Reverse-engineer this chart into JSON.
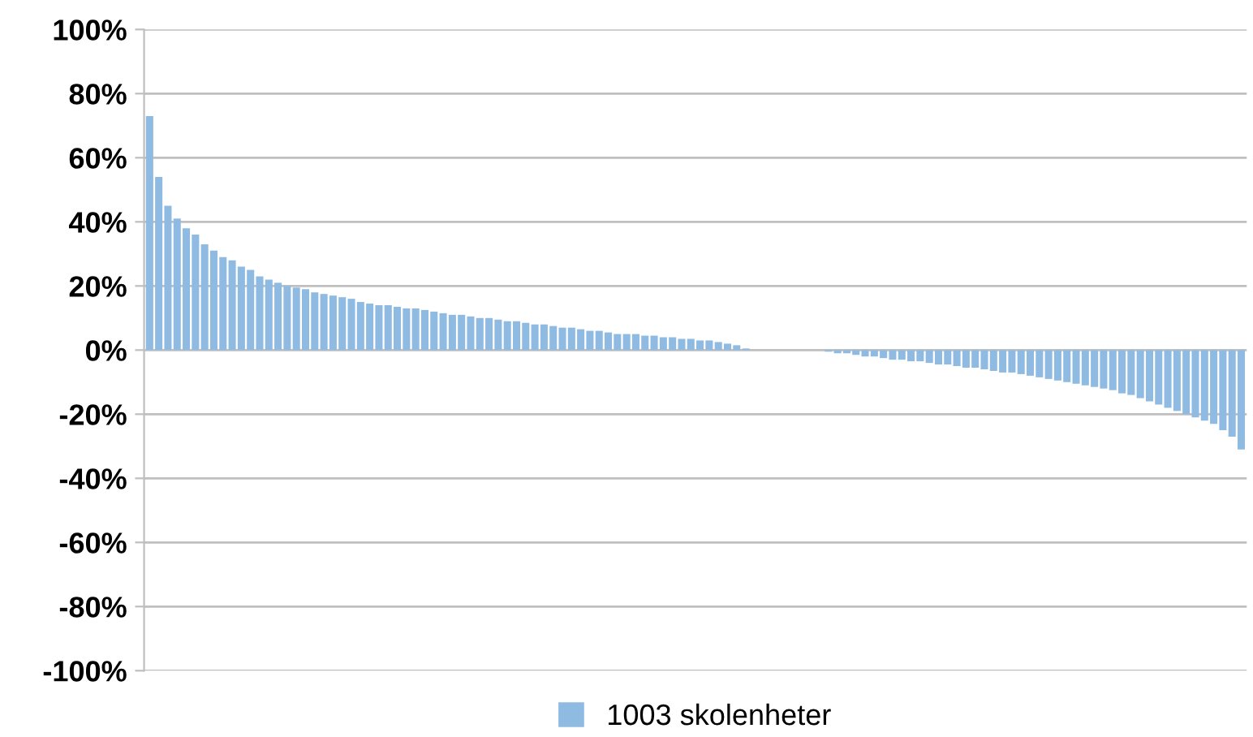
{
  "chart_data": {
    "type": "bar",
    "categories": [
      null,
      null,
      null,
      null,
      null,
      null,
      null,
      null,
      null,
      null,
      null,
      null,
      null,
      null,
      null,
      null,
      null,
      null,
      null,
      null,
      null,
      null,
      null,
      null,
      null,
      null,
      null,
      null,
      null,
      null,
      null,
      null,
      null,
      null,
      null,
      null,
      null,
      null,
      null,
      null,
      null,
      null,
      null,
      null,
      null,
      null,
      null,
      null,
      null,
      null,
      null,
      null,
      null,
      null,
      null,
      null,
      null,
      null,
      null,
      null,
      null,
      null,
      null,
      null,
      null,
      null,
      null,
      null,
      null,
      null,
      null,
      null,
      null,
      null,
      null,
      null,
      null,
      null,
      null,
      null,
      null,
      null,
      null,
      null,
      null,
      null,
      null,
      null,
      null,
      null,
      null,
      null,
      null,
      null,
      null,
      null,
      null,
      null,
      null,
      null,
      null,
      null,
      null,
      null,
      null,
      null,
      null,
      null,
      null,
      null,
      null,
      null,
      null,
      null,
      null,
      null,
      null,
      null,
      null,
      null
    ],
    "series": [
      {
        "name": "1003 skolenheter",
        "color": "#8fbbe3",
        "values": [
          0.73,
          0.54,
          0.45,
          0.41,
          0.38,
          0.36,
          0.33,
          0.31,
          0.29,
          0.28,
          0.26,
          0.25,
          0.23,
          0.22,
          0.21,
          0.2,
          0.195,
          0.19,
          0.18,
          0.175,
          0.17,
          0.165,
          0.16,
          0.15,
          0.145,
          0.14,
          0.14,
          0.135,
          0.13,
          0.13,
          0.125,
          0.12,
          0.115,
          0.11,
          0.11,
          0.105,
          0.1,
          0.1,
          0.095,
          0.09,
          0.09,
          0.085,
          0.08,
          0.08,
          0.075,
          0.07,
          0.07,
          0.065,
          0.06,
          0.06,
          0.055,
          0.05,
          0.05,
          0.05,
          0.045,
          0.045,
          0.04,
          0.04,
          0.035,
          0.035,
          0.03,
          0.03,
          0.025,
          0.02,
          0.015,
          0.005,
          0,
          0,
          0,
          0,
          0,
          0,
          0,
          0,
          -0.005,
          -0.01,
          -0.01,
          -0.015,
          -0.02,
          -0.02,
          -0.025,
          -0.03,
          -0.03,
          -0.035,
          -0.035,
          -0.04,
          -0.045,
          -0.045,
          -0.05,
          -0.055,
          -0.055,
          -0.06,
          -0.065,
          -0.07,
          -0.07,
          -0.075,
          -0.08,
          -0.085,
          -0.09,
          -0.095,
          -0.1,
          -0.105,
          -0.11,
          -0.115,
          -0.12,
          -0.125,
          -0.135,
          -0.14,
          -0.15,
          -0.16,
          -0.17,
          -0.18,
          -0.19,
          -0.2,
          -0.21,
          -0.22,
          -0.23,
          -0.25,
          -0.27,
          -0.31
        ]
      }
    ],
    "ylim": [
      -1,
      1
    ],
    "yticks": [
      {
        "value": -1,
        "label": "-100%"
      },
      {
        "value": -0.8,
        "label": "-80%"
      },
      {
        "value": -0.6,
        "label": "-60%"
      },
      {
        "value": -0.4,
        "label": "-40%"
      },
      {
        "value": -0.2,
        "label": "-20%"
      },
      {
        "value": 0,
        "label": "0%"
      },
      {
        "value": 0.2,
        "label": "20%"
      },
      {
        "value": 0.4,
        "label": "40%"
      },
      {
        "value": 0.6,
        "label": "60%"
      },
      {
        "value": 0.8,
        "label": "80%"
      },
      {
        "value": 1,
        "label": "100%"
      }
    ],
    "grid": "y",
    "legend": "bottom"
  }
}
